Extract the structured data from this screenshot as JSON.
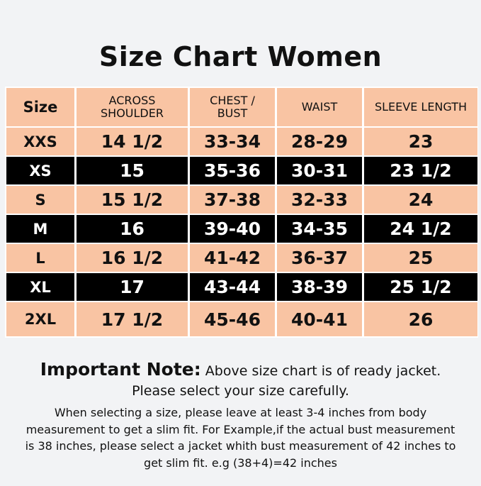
{
  "title": "Size Chart Women",
  "colors": {
    "peach": "#f9c4a3",
    "black": "#000000",
    "background": "#f2f3f5"
  },
  "table": {
    "headers": [
      "Size",
      "ACROSS SHOULDER",
      "CHEST / BUST",
      "WAIST",
      "SLEEVE LENGTH"
    ],
    "rows": [
      {
        "style": "peach",
        "cells": [
          "XXS",
          "14 1/2",
          "33-34",
          "28-29",
          "23"
        ]
      },
      {
        "style": "black",
        "cells": [
          "XS",
          "15",
          "35-36",
          "30-31",
          "23 1/2"
        ]
      },
      {
        "style": "peach",
        "cells": [
          "S",
          "15 1/2",
          "37-38",
          "32-33",
          "24"
        ]
      },
      {
        "style": "black",
        "cells": [
          "M",
          "16",
          "39-40",
          "34-35",
          "24 1/2"
        ]
      },
      {
        "style": "peach",
        "cells": [
          "L",
          "16 1/2",
          "41-42",
          "36-37",
          "25"
        ]
      },
      {
        "style": "black",
        "cells": [
          "XL",
          "17",
          "43-44",
          "38-39",
          "25 1/2"
        ]
      },
      {
        "style": "peach",
        "cells": [
          "2XL",
          "17 1/2",
          "45-46",
          "40-41",
          "26"
        ]
      }
    ]
  },
  "note": {
    "label": "Important Note:",
    "line1": "Above size chart is of ready jacket.",
    "line2": "Please select your size carefully.",
    "details": "When selecting a size, please leave at least 3-4 inches from body measurement to get a slim fit. For Example,if the actual bust measurement is 38 inches, please select a jacket whith bust measurement of 42 inches to get slim fit. e.g (38+4)=42 inches"
  }
}
